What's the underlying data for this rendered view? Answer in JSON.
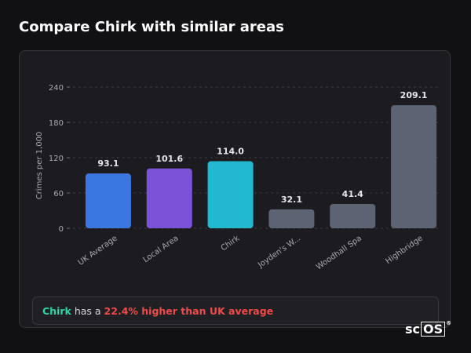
{
  "title": "Compare Chirk with similar areas",
  "chart_data": {
    "type": "bar",
    "ylabel": "Crimes per 1,000",
    "xlabel": "",
    "ylim": [
      0,
      240
    ],
    "yticks": [
      0,
      60,
      120,
      180,
      240
    ],
    "grid": true,
    "categories": [
      "UK Average",
      "Local Area",
      "Chirk",
      "Joyden's W...",
      "Woodhall Spa",
      "Highbridge"
    ],
    "values": [
      93.1,
      101.6,
      114.0,
      32.1,
      41.4,
      209.1
    ],
    "value_labels": [
      "93.1",
      "101.6",
      "114.0",
      "32.1",
      "41.4",
      "209.1"
    ],
    "colors": [
      "#3a78e0",
      "#7b52d8",
      "#22b8d0",
      "#5c6474",
      "#5c6474",
      "#5c6474"
    ]
  },
  "summary": {
    "place": "Chirk",
    "connector": "has a",
    "comparison": "22.4% higher than UK average"
  },
  "logo": {
    "prefix": "sc",
    "boxed": "OS",
    "mark": "®"
  }
}
